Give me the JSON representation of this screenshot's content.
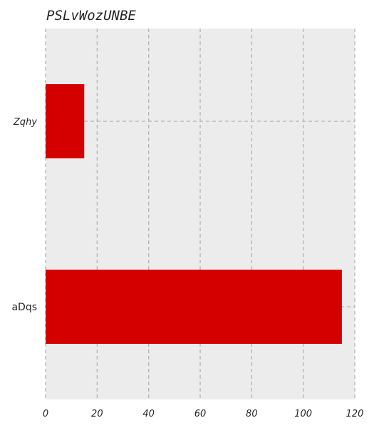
{
  "chart_data": {
    "type": "bar",
    "orientation": "horizontal",
    "title": "PSLvWozUNBE",
    "categories": [
      "Zqhy",
      "aDqs"
    ],
    "category_label_styles": [
      "italic",
      "normal"
    ],
    "values": [
      15,
      115
    ],
    "xlim": [
      0,
      120
    ],
    "xticks": [
      0,
      20,
      40,
      60,
      80,
      100,
      120
    ],
    "xlabel": "",
    "ylabel": "",
    "grid": true,
    "grid_style": "dashed",
    "bar_color": "#d40000",
    "background_color": "#ececec",
    "grid_color": "#b3b3b3"
  }
}
